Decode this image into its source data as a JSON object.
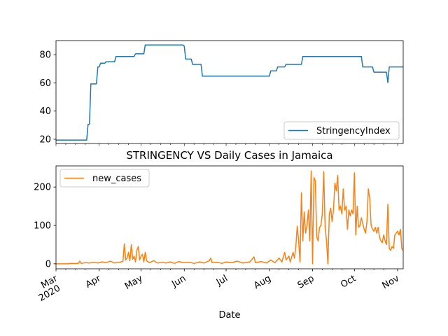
{
  "chart_data": [
    {
      "type": "line",
      "series": [
        {
          "name": "StringencyIndex",
          "color": "#1f77b4",
          "points": [
            [
              "2020-03-01",
              19.4
            ],
            [
              "2020-03-23",
              19.4
            ],
            [
              "2020-03-24",
              30.6
            ],
            [
              "2020-03-25",
              30.6
            ],
            [
              "2020-03-26",
              59.3
            ],
            [
              "2020-03-30",
              59.3
            ],
            [
              "2020-03-31",
              71.3
            ],
            [
              "2020-04-01",
              71.3
            ],
            [
              "2020-04-02",
              74.0
            ],
            [
              "2020-04-05",
              74.0
            ],
            [
              "2020-04-06",
              75.0
            ],
            [
              "2020-04-12",
              75.0
            ],
            [
              "2020-04-13",
              78.7
            ],
            [
              "2020-04-26",
              78.7
            ],
            [
              "2020-04-27",
              80.6
            ],
            [
              "2020-05-03",
              80.6
            ],
            [
              "2020-05-04",
              86.9
            ],
            [
              "2020-05-31",
              86.9
            ],
            [
              "2020-06-01",
              86.0
            ],
            [
              "2020-06-02",
              76.9
            ],
            [
              "2020-06-06",
              76.9
            ],
            [
              "2020-06-07",
              73.1
            ],
            [
              "2020-06-13",
              73.1
            ],
            [
              "2020-06-14",
              64.8
            ],
            [
              "2020-08-01",
              64.8
            ],
            [
              "2020-08-02",
              68.5
            ],
            [
              "2020-08-06",
              68.5
            ],
            [
              "2020-08-07",
              71.3
            ],
            [
              "2020-08-12",
              71.3
            ],
            [
              "2020-08-13",
              73.1
            ],
            [
              "2020-08-24",
              73.1
            ],
            [
              "2020-08-25",
              78.7
            ],
            [
              "2020-10-06",
              78.7
            ],
            [
              "2020-10-07",
              71.3
            ],
            [
              "2020-10-14",
              71.3
            ],
            [
              "2020-10-15",
              67.6
            ],
            [
              "2020-10-24",
              67.6
            ],
            [
              "2020-10-25",
              60.2
            ],
            [
              "2020-10-26",
              71.3
            ],
            [
              "2020-11-05",
              71.3
            ]
          ]
        }
      ],
      "ylim": [
        17,
        90
      ],
      "yticks": [
        20,
        40,
        60,
        80
      ],
      "xlim": [
        "2020-03-01",
        "2020-11-05"
      ],
      "legend": "bottom-right"
    },
    {
      "type": "line",
      "title": "STRINGENCY VS Daily Cases in Jamaica",
      "xlabel": "Date",
      "series": [
        {
          "name": "new_cases",
          "color": "#ff7f0e",
          "points": [
            [
              "2020-03-01",
              0
            ],
            [
              "2020-03-10",
              0
            ],
            [
              "2020-03-11",
              1
            ],
            [
              "2020-03-17",
              1
            ],
            [
              "2020-03-18",
              7
            ],
            [
              "2020-03-19",
              1
            ],
            [
              "2020-03-22",
              3
            ],
            [
              "2020-03-25",
              2
            ],
            [
              "2020-03-28",
              4
            ],
            [
              "2020-03-31",
              2
            ],
            [
              "2020-04-03",
              5
            ],
            [
              "2020-04-06",
              3
            ],
            [
              "2020-04-09",
              7
            ],
            [
              "2020-04-12",
              2
            ],
            [
              "2020-04-15",
              4
            ],
            [
              "2020-04-18",
              6
            ],
            [
              "2020-04-19",
              52
            ],
            [
              "2020-04-20",
              10
            ],
            [
              "2020-04-21",
              15
            ],
            [
              "2020-04-22",
              30
            ],
            [
              "2020-04-23",
              8
            ],
            [
              "2020-04-24",
              50
            ],
            [
              "2020-04-25",
              12
            ],
            [
              "2020-04-26",
              20
            ],
            [
              "2020-04-27",
              5
            ],
            [
              "2020-04-28",
              35
            ],
            [
              "2020-04-29",
              45
            ],
            [
              "2020-04-30",
              10
            ],
            [
              "2020-05-01",
              20
            ],
            [
              "2020-05-02",
              25
            ],
            [
              "2020-05-03",
              5
            ],
            [
              "2020-05-04",
              30
            ],
            [
              "2020-05-05",
              8
            ],
            [
              "2020-05-07",
              3
            ],
            [
              "2020-05-10",
              8
            ],
            [
              "2020-05-13",
              2
            ],
            [
              "2020-05-16",
              4
            ],
            [
              "2020-05-19",
              2
            ],
            [
              "2020-05-22",
              5
            ],
            [
              "2020-05-25",
              1
            ],
            [
              "2020-05-28",
              6
            ],
            [
              "2020-06-01",
              3
            ],
            [
              "2020-06-05",
              4
            ],
            [
              "2020-06-08",
              1
            ],
            [
              "2020-06-12",
              5
            ],
            [
              "2020-06-15",
              2
            ],
            [
              "2020-06-19",
              8
            ],
            [
              "2020-06-20",
              15
            ],
            [
              "2020-06-21",
              3
            ],
            [
              "2020-06-25",
              4
            ],
            [
              "2020-06-28",
              1
            ],
            [
              "2020-07-01",
              5
            ],
            [
              "2020-07-05",
              3
            ],
            [
              "2020-07-09",
              7
            ],
            [
              "2020-07-13",
              2
            ],
            [
              "2020-07-18",
              5
            ],
            [
              "2020-07-21",
              18
            ],
            [
              "2020-07-22",
              3
            ],
            [
              "2020-07-26",
              6
            ],
            [
              "2020-07-30",
              2
            ],
            [
              "2020-08-02",
              10
            ],
            [
              "2020-08-05",
              3
            ],
            [
              "2020-08-08",
              15
            ],
            [
              "2020-08-10",
              5
            ],
            [
              "2020-08-12",
              30
            ],
            [
              "2020-08-13",
              10
            ],
            [
              "2020-08-15",
              20
            ],
            [
              "2020-08-16",
              5
            ],
            [
              "2020-08-18",
              30
            ],
            [
              "2020-08-19",
              15
            ],
            [
              "2020-08-20",
              45
            ],
            [
              "2020-08-21",
              98
            ],
            [
              "2020-08-22",
              60
            ],
            [
              "2020-08-23",
              5
            ],
            [
              "2020-08-24",
              185
            ],
            [
              "2020-08-25",
              60
            ],
            [
              "2020-08-26",
              135
            ],
            [
              "2020-08-27",
              80
            ],
            [
              "2020-08-28",
              100
            ],
            [
              "2020-08-29",
              140
            ],
            [
              "2020-08-30",
              60
            ],
            [
              "2020-08-31",
              242
            ],
            [
              "2020-09-01",
              0
            ],
            [
              "2020-09-02",
              225
            ],
            [
              "2020-09-03",
              215
            ],
            [
              "2020-09-04",
              70
            ],
            [
              "2020-09-05",
              60
            ],
            [
              "2020-09-06",
              95
            ],
            [
              "2020-09-07",
              100
            ],
            [
              "2020-09-08",
              130
            ],
            [
              "2020-09-09",
              240
            ],
            [
              "2020-09-10",
              95
            ],
            [
              "2020-09-11",
              60
            ],
            [
              "2020-09-12",
              0
            ],
            [
              "2020-09-13",
              130
            ],
            [
              "2020-09-14",
              145
            ],
            [
              "2020-09-15",
              110
            ],
            [
              "2020-09-16",
              140
            ],
            [
              "2020-09-17",
              210
            ],
            [
              "2020-09-18",
              190
            ],
            [
              "2020-09-19",
              230
            ],
            [
              "2020-09-20",
              140
            ],
            [
              "2020-09-21",
              150
            ],
            [
              "2020-09-22",
              130
            ],
            [
              "2020-09-23",
              195
            ],
            [
              "2020-09-24",
              140
            ],
            [
              "2020-09-25",
              150
            ],
            [
              "2020-09-26",
              90
            ],
            [
              "2020-09-27",
              140
            ],
            [
              "2020-09-28",
              125
            ],
            [
              "2020-09-29",
              140
            ],
            [
              "2020-09-30",
              130
            ],
            [
              "2020-10-01",
              237
            ],
            [
              "2020-10-02",
              75
            ],
            [
              "2020-10-03",
              150
            ],
            [
              "2020-10-04",
              95
            ],
            [
              "2020-10-05",
              100
            ],
            [
              "2020-10-06",
              120
            ],
            [
              "2020-10-07",
              105
            ],
            [
              "2020-10-08",
              90
            ],
            [
              "2020-10-09",
              80
            ],
            [
              "2020-10-10",
              110
            ],
            [
              "2020-10-11",
              195
            ],
            [
              "2020-10-12",
              170
            ],
            [
              "2020-10-13",
              100
            ],
            [
              "2020-10-14",
              90
            ],
            [
              "2020-10-15",
              85
            ],
            [
              "2020-10-16",
              95
            ],
            [
              "2020-10-17",
              80
            ],
            [
              "2020-10-18",
              95
            ],
            [
              "2020-10-19",
              70
            ],
            [
              "2020-10-20",
              60
            ],
            [
              "2020-10-21",
              55
            ],
            [
              "2020-10-22",
              75
            ],
            [
              "2020-10-23",
              60
            ],
            [
              "2020-10-24",
              50
            ],
            [
              "2020-10-25",
              155
            ],
            [
              "2020-10-26",
              40
            ],
            [
              "2020-10-27",
              35
            ],
            [
              "2020-10-28",
              45
            ],
            [
              "2020-10-29",
              40
            ],
            [
              "2020-10-30",
              75
            ],
            [
              "2020-10-31",
              80
            ],
            [
              "2020-11-01",
              85
            ],
            [
              "2020-11-02",
              75
            ],
            [
              "2020-11-03",
              90
            ],
            [
              "2020-11-04",
              40
            ],
            [
              "2020-11-05",
              35
            ]
          ]
        }
      ],
      "ylim": [
        -13,
        255
      ],
      "yticks": [
        0,
        100,
        200
      ],
      "xlim": [
        "2020-03-01",
        "2020-11-05"
      ],
      "xticks": [
        {
          "date": "2020-03-01",
          "label": "Mar",
          "sub": "2020"
        },
        {
          "date": "2020-04-01",
          "label": "Apr"
        },
        {
          "date": "2020-05-01",
          "label": "May"
        },
        {
          "date": "2020-06-01",
          "label": "Jun"
        },
        {
          "date": "2020-07-01",
          "label": "Jul"
        },
        {
          "date": "2020-08-01",
          "label": "Aug"
        },
        {
          "date": "2020-09-01",
          "label": "Sep"
        },
        {
          "date": "2020-10-01",
          "label": "Oct"
        },
        {
          "date": "2020-11-01",
          "label": "Nov"
        }
      ],
      "legend": "top-left"
    }
  ]
}
